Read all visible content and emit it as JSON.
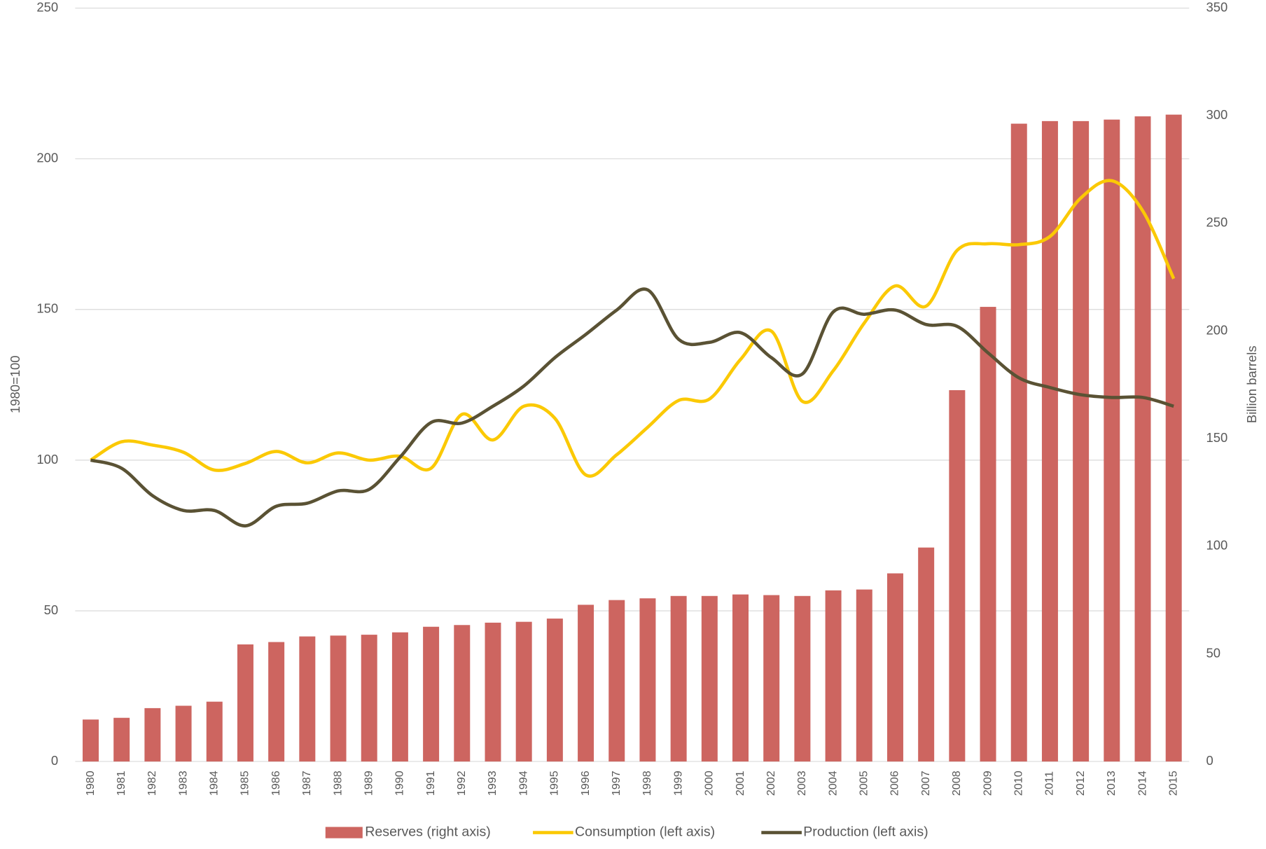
{
  "chart_data": {
    "type": "bar-line",
    "ylabel": "1980=100",
    "y2label": "Billion barrels",
    "categories": [
      "1980",
      "1981",
      "1982",
      "1983",
      "1984",
      "1985",
      "1986",
      "1987",
      "1988",
      "1989",
      "1990",
      "1991",
      "1992",
      "1993",
      "1994",
      "1995",
      "1996",
      "1997",
      "1998",
      "1999",
      "2000",
      "2001",
      "2002",
      "2003",
      "2004",
      "2005",
      "2006",
      "2007",
      "2008",
      "2009",
      "2010",
      "2011",
      "2012",
      "2013",
      "2014",
      "2015"
    ],
    "series": [
      {
        "name": "Reserves (right axis)",
        "type": "bar",
        "axis": "y2",
        "color": "#cd6560",
        "values": [
          19.5,
          20.3,
          24.8,
          25.9,
          27.8,
          54.4,
          55.5,
          58.1,
          58.5,
          58.9,
          60.0,
          62.6,
          63.4,
          64.5,
          64.9,
          66.4,
          72.8,
          75.0,
          75.8,
          76.9,
          76.9,
          77.6,
          77.3,
          76.9,
          79.5,
          79.9,
          87.4,
          99.4,
          172.5,
          211.2,
          296.3,
          297.5,
          297.5,
          298.2,
          299.7,
          300.5
        ]
      },
      {
        "name": "Consumption (left axis)",
        "type": "line",
        "color": "#fbc905",
        "values": [
          100,
          106.1,
          105,
          102.6,
          96.7,
          98.9,
          102.9,
          99.1,
          102.4,
          100,
          101.3,
          97.3,
          115.2,
          106.7,
          117.9,
          113.9,
          95.1,
          101.8,
          110.9,
          119.8,
          120.3,
          133.4,
          142.8,
          119.5,
          129.7,
          145.5,
          157.8,
          151.1,
          169.6,
          171.8,
          171.5,
          174.2,
          187,
          192.7,
          182.7,
          160.2
        ]
      },
      {
        "name": "Production (left axis)",
        "type": "line",
        "color": "#5a5234",
        "values": [
          100,
          97.3,
          88.2,
          83.3,
          83.3,
          78.2,
          84.7,
          85.7,
          89.8,
          90.3,
          101,
          112.5,
          112.3,
          117.9,
          124.6,
          134,
          141.7,
          149.8,
          156.5,
          140.1,
          139.1,
          142.3,
          134,
          128.6,
          149.2,
          148.4,
          149.8,
          145,
          144.4,
          135.6,
          127.3,
          124.1,
          121.7,
          120.8,
          120.8,
          117.9
        ]
      }
    ],
    "ylim": [
      0,
      250
    ],
    "yticks": [
      0,
      50,
      100,
      150,
      200,
      250
    ],
    "y2lim": [
      0,
      350
    ],
    "y2ticks": [
      0,
      50,
      100,
      150,
      200,
      250,
      300,
      350
    ],
    "grid": true,
    "legend": "bottom"
  }
}
